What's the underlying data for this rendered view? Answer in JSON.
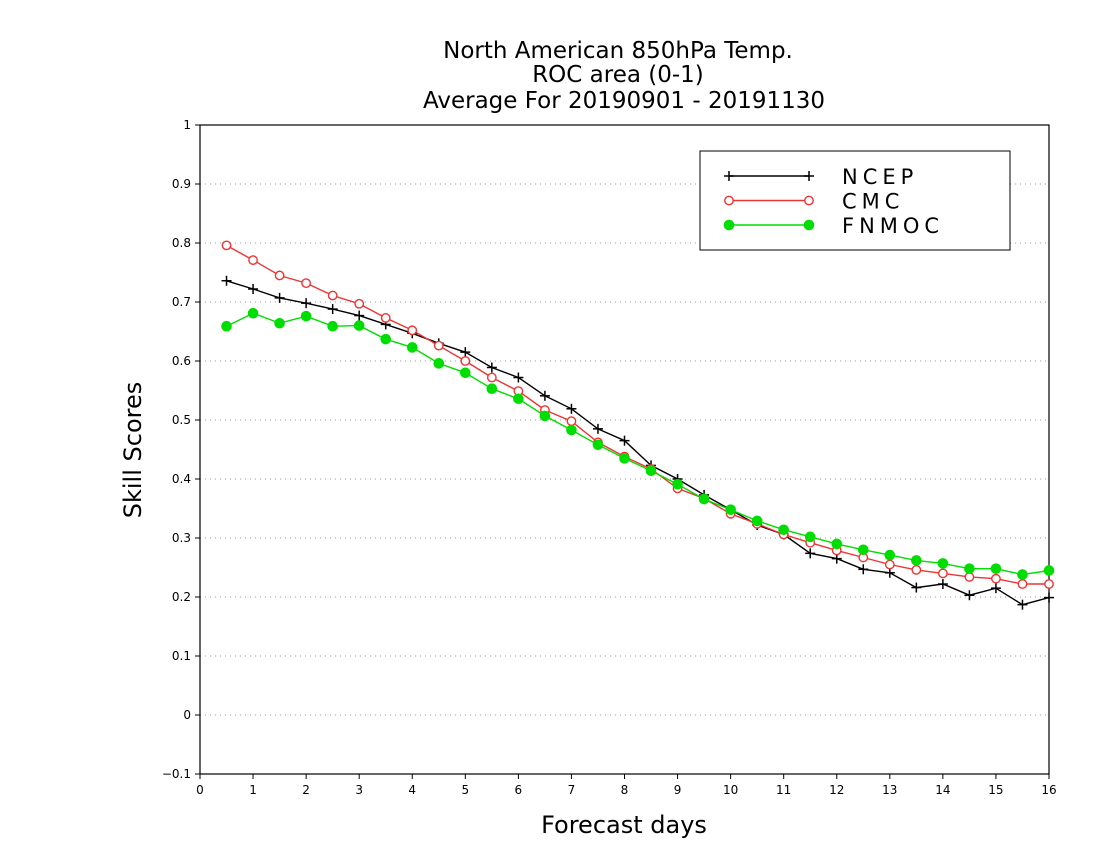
{
  "chart_data": {
    "type": "line",
    "title": [
      "North American 850hPa Temp.",
      "ROC area (0-1)",
      "Average For 20190901 - 20191130"
    ],
    "xlabel": "Forecast days",
    "ylabel": "Skill Scores",
    "xlim": [
      0,
      16
    ],
    "ylim": [
      -0.1,
      1
    ],
    "xticks": [
      0,
      1,
      2,
      3,
      4,
      5,
      6,
      7,
      8,
      9,
      10,
      11,
      12,
      13,
      14,
      15,
      16
    ],
    "yticks": [
      -0.1,
      0,
      0.1,
      0.2,
      0.3,
      0.4,
      0.5,
      0.6,
      0.7,
      0.8,
      0.9,
      1
    ],
    "ytick_labels": [
      "−0.1",
      "0",
      "0.1",
      "0.2",
      "0.3",
      "0.4",
      "0.5",
      "0.6",
      "0.7",
      "0.8",
      "0.9",
      "1"
    ],
    "grid": "horizontal-dotted",
    "legend_position": "top-right",
    "x": [
      0.5,
      1,
      1.5,
      2,
      2.5,
      3,
      3.5,
      4,
      4.5,
      5,
      5.5,
      6,
      6.5,
      7,
      7.5,
      8,
      8.5,
      9,
      9.5,
      10,
      10.5,
      11,
      11.5,
      12,
      12.5,
      13,
      13.5,
      14,
      14.5,
      15,
      15.5,
      16
    ],
    "series": [
      {
        "name": "NCEP",
        "color": "#000000",
        "marker": "plus",
        "values": [
          0.736,
          0.722,
          0.707,
          0.698,
          0.688,
          0.677,
          0.662,
          0.647,
          0.63,
          0.615,
          0.589,
          0.572,
          0.541,
          0.519,
          0.485,
          0.465,
          0.423,
          0.4,
          0.373,
          0.348,
          0.322,
          0.306,
          0.274,
          0.265,
          0.247,
          0.241,
          0.216,
          0.222,
          0.203,
          0.215,
          0.187,
          0.199
        ]
      },
      {
        "name": "CMC",
        "color": "#ee3333",
        "marker": "open-circle",
        "values": [
          0.796,
          0.771,
          0.745,
          0.732,
          0.711,
          0.697,
          0.673,
          0.652,
          0.626,
          0.6,
          0.572,
          0.549,
          0.517,
          0.498,
          0.462,
          0.438,
          0.417,
          0.384,
          0.367,
          0.341,
          0.324,
          0.306,
          0.292,
          0.279,
          0.267,
          0.255,
          0.246,
          0.24,
          0.234,
          0.231,
          0.222,
          0.222
        ]
      },
      {
        "name": "FNMOC",
        "color": "#00dd00",
        "marker": "filled-circle",
        "values": [
          0.659,
          0.681,
          0.664,
          0.676,
          0.659,
          0.66,
          0.637,
          0.623,
          0.596,
          0.58,
          0.553,
          0.536,
          0.507,
          0.483,
          0.458,
          0.435,
          0.414,
          0.391,
          0.366,
          0.348,
          0.329,
          0.314,
          0.302,
          0.29,
          0.28,
          0.271,
          0.262,
          0.257,
          0.248,
          0.248,
          0.238,
          0.245
        ]
      }
    ]
  }
}
